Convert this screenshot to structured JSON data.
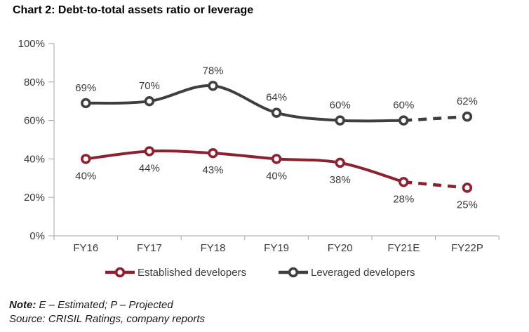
{
  "title": "Chart 2: Debt-to-total assets ratio or leverage",
  "chart_data": {
    "type": "line",
    "title": "Chart 2: Debt-to-total assets ratio or leverage",
    "categories": [
      "FY16",
      "FY17",
      "FY18",
      "FY19",
      "FY20",
      "FY21E",
      "FY22P"
    ],
    "series": [
      {
        "name": "Established developers",
        "color": "#8B2232",
        "values": [
          40,
          44,
          43,
          40,
          38,
          28,
          25
        ],
        "labels": [
          "40%",
          "44%",
          "43%",
          "40%",
          "38%",
          "28%",
          "25%"
        ],
        "label_position": "below",
        "dashed_from_index": 5,
        "marker": "open-circle"
      },
      {
        "name": "Leveraged developers",
        "color": "#3F3F3F",
        "values": [
          69,
          70,
          78,
          64,
          60,
          60,
          62
        ],
        "labels": [
          "69%",
          "70%",
          "78%",
          "64%",
          "60%",
          "60%",
          "62%"
        ],
        "label_position": "above",
        "dashed_from_index": 5,
        "marker": "open-circle"
      }
    ],
    "y_axis": {
      "min": 0,
      "max": 100,
      "step": 20,
      "tick_labels": [
        "0%",
        "20%",
        "40%",
        "60%",
        "80%",
        "100%"
      ]
    },
    "x_axis": {
      "tick_labels": [
        "FY16",
        "FY17",
        "FY18",
        "FY19",
        "FY20",
        "FY21E",
        "FY22P"
      ]
    },
    "grid": false,
    "legend": {
      "position": "bottom",
      "entries": [
        "Established developers",
        "Leveraged developers"
      ]
    }
  },
  "colors": {
    "established": "#8B2232",
    "leveraged": "#3F3F3F",
    "axis": "#A6A6A6",
    "label_text": "#3B3B3B",
    "title_text": "#000000"
  },
  "notes": {
    "note_label": "Note:",
    "note_text": " E – Estimated; P – Projected",
    "source_text": "Source: CRISIL Ratings, company reports"
  }
}
